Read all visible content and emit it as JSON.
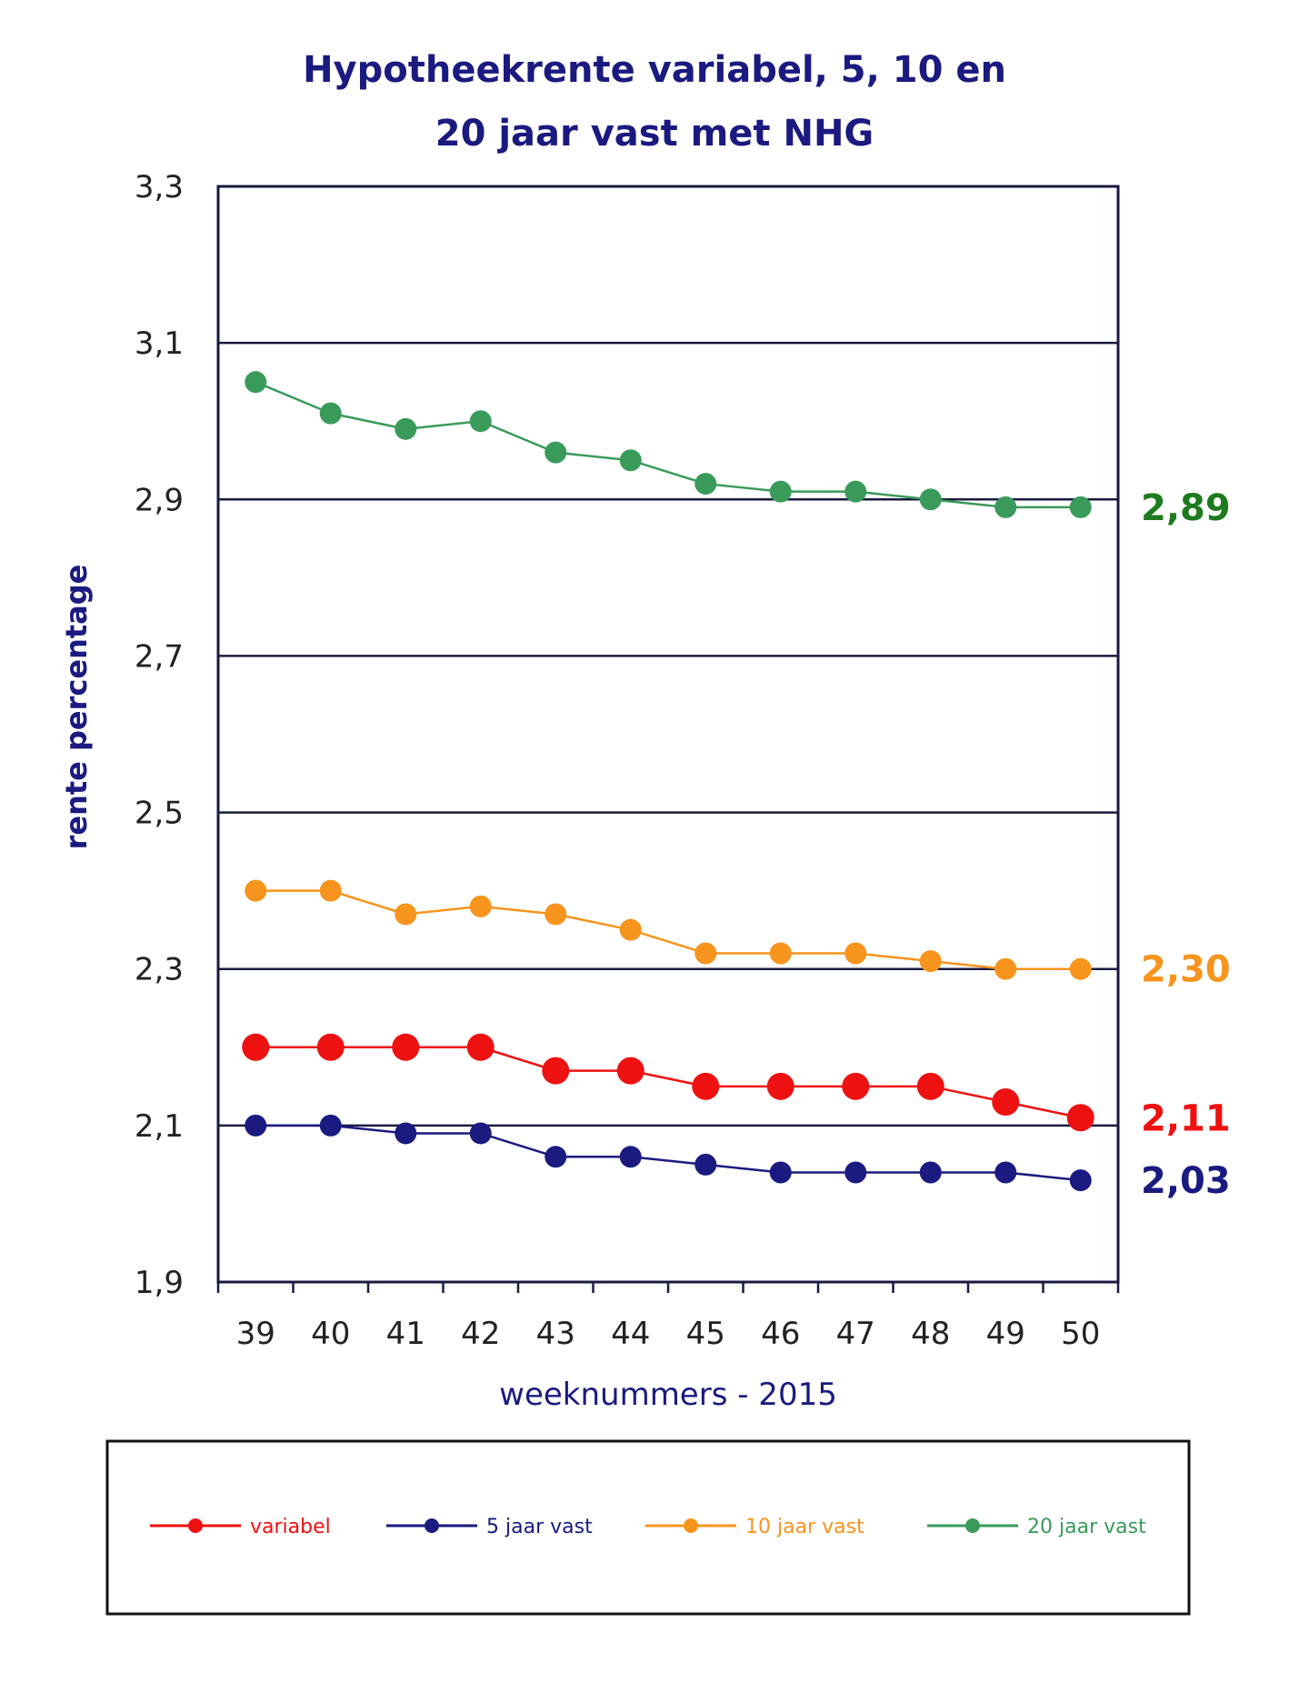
{
  "chart_data": {
    "type": "line",
    "title_lines": [
      "Hypotheekrente variabel, 5, 10 en",
      "20 jaar vast met NHG"
    ],
    "xlabel": "weeknummers - 2015",
    "ylabel": "rente percentage",
    "x": [
      "39",
      "40",
      "41",
      "42",
      "43",
      "44",
      "45",
      "46",
      "47",
      "48",
      "49",
      "50"
    ],
    "ylim": [
      1.9,
      3.3
    ],
    "yticks": [
      "1,9",
      "2,1",
      "2,3",
      "2,5",
      "2,7",
      "2,9",
      "3,1",
      "3,3"
    ],
    "ytick_values": [
      1.9,
      2.1,
      2.3,
      2.5,
      2.7,
      2.9,
      3.1,
      3.3
    ],
    "grid": "horizontal",
    "legend_position": "bottom",
    "series": [
      {
        "name": "variabel",
        "color": "#ee1111",
        "values": [
          2.2,
          2.2,
          2.2,
          2.2,
          2.17,
          2.17,
          2.15,
          2.15,
          2.15,
          2.15,
          2.13,
          2.11
        ],
        "end_label": "2,11"
      },
      {
        "name": "5 jaar vast",
        "color": "#1a1a80",
        "values": [
          2.1,
          2.1,
          2.09,
          2.09,
          2.06,
          2.06,
          2.05,
          2.04,
          2.04,
          2.04,
          2.04,
          2.03
        ],
        "end_label": "2,03"
      },
      {
        "name": "10 jaar vast",
        "color": "#f7941d",
        "values": [
          2.4,
          2.4,
          2.37,
          2.38,
          2.37,
          2.35,
          2.32,
          2.32,
          2.32,
          2.31,
          2.3,
          2.3
        ],
        "end_label": "2,30"
      },
      {
        "name": "20 jaar vast",
        "color": "#3a9a5a",
        "values": [
          3.05,
          3.01,
          2.99,
          3.0,
          2.96,
          2.95,
          2.92,
          2.91,
          2.91,
          2.9,
          2.89,
          2.89
        ],
        "end_label": "2,89"
      }
    ],
    "end_label_colors": {
      "variabel": "#ee1111",
      "5 jaar vast": "#1a1a80",
      "10 jaar vast": "#f7941d",
      "20 jaar vast": "#1e7a1e"
    }
  }
}
